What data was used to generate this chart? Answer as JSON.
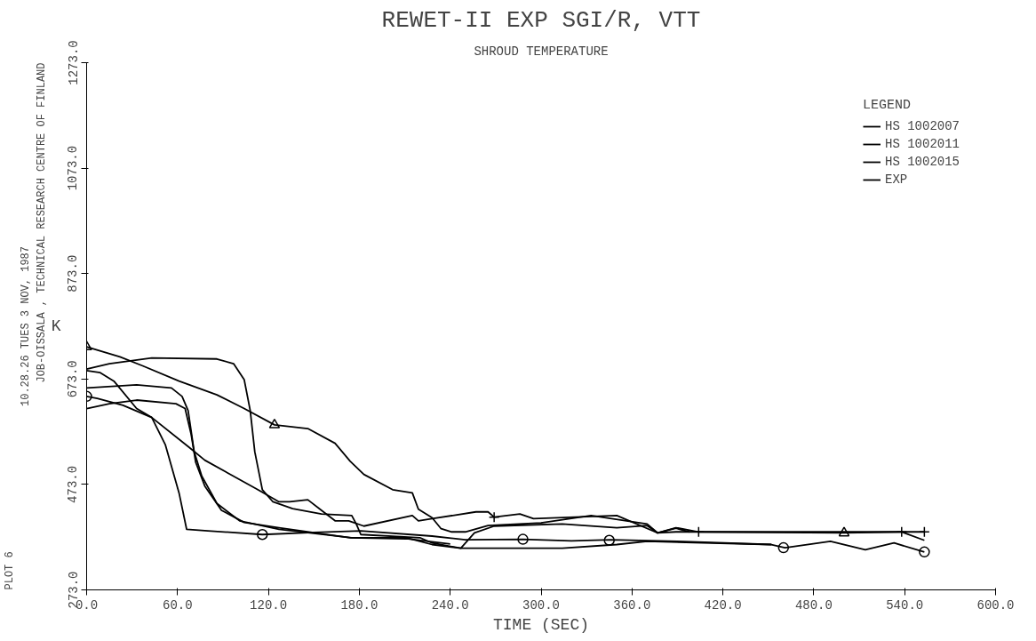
{
  "chart_data": {
    "type": "line",
    "title": "REWET-II EXP SGI/R, VTT",
    "subtitle": "SHROUD TEMPERATURE",
    "xlabel": "TIME (SEC)",
    "ylabel": "K",
    "legend_title": "LEGEND",
    "legend": "top right",
    "grid": false,
    "annotations": [
      "JOB-OISSALA , TECHNICAL RESEARCH CENTRE OF FINLAND",
      "10.28.26 TUES 3 NOV, 1987",
      "PLOT 6"
    ],
    "xlim": [
      0,
      600
    ],
    "ylim": [
      273,
      1273
    ],
    "xticks": [
      {
        "value": 0,
        "label": "0.0"
      },
      {
        "value": 60,
        "label": "60.0"
      },
      {
        "value": 120,
        "label": "120.0"
      },
      {
        "value": 180,
        "label": "180.0"
      },
      {
        "value": 240,
        "label": "240.0"
      },
      {
        "value": 300,
        "label": "300.0"
      },
      {
        "value": 360,
        "label": "360.0"
      },
      {
        "value": 420,
        "label": "420.0"
      },
      {
        "value": 480,
        "label": "480.0"
      },
      {
        "value": 540,
        "label": "540.0"
      },
      {
        "value": 600,
        "label": "600.0"
      }
    ],
    "yticks": [
      {
        "value": 273,
        "label": "273.0"
      },
      {
        "value": 473,
        "label": "473.0"
      },
      {
        "value": 673,
        "label": "673.0"
      },
      {
        "value": 873,
        "label": "873.0"
      },
      {
        "value": 1073,
        "label": "1073.0"
      },
      {
        "value": 1273,
        "label": "1273.0"
      }
    ],
    "series": [
      {
        "name": "HS 1002007",
        "color": "#000000",
        "x": [
          0,
          7,
          24,
          43,
          52,
          61,
          66,
          80,
          116,
          150,
          181,
          228,
          250,
          288,
          320,
          346,
          390,
          452,
          461,
          491,
          514,
          533,
          553
        ],
        "values": [
          640,
          636,
          623,
          600,
          548,
          457,
          388,
          385,
          378,
          382,
          385,
          375,
          368,
          369,
          366,
          368,
          365,
          359,
          353,
          365,
          349,
          362,
          345
        ]
      },
      {
        "name": "HS 1002011",
        "color": "#000000",
        "x": [
          0,
          22,
          37,
          61,
          86,
          104,
          124,
          146,
          164,
          174,
          183,
          202,
          215,
          219,
          228,
          234,
          241,
          250,
          265,
          300,
          333,
          370,
          377,
          389,
          404,
          500,
          538,
          553
        ],
        "values": [
          734,
          715,
          698,
          669,
          643,
          617,
          586,
          579,
          551,
          517,
          492,
          463,
          457,
          426,
          410,
          389,
          383,
          383,
          395,
          400,
          414,
          398,
          381,
          383,
          383,
          381,
          383,
          367
        ]
      },
      {
        "name": "HS 1002015",
        "color": "#000000",
        "x": [
          0,
          9,
          18,
          33,
          43,
          67,
          78,
          113,
          127,
          134,
          146,
          155,
          164,
          173,
          183,
          215,
          219,
          228,
          257,
          265,
          269,
          286,
          295,
          350,
          377,
          389,
          404,
          500,
          538,
          553
        ],
        "values": [
          689,
          685,
          669,
          617,
          600,
          545,
          519,
          463,
          440,
          440,
          444,
          424,
          404,
          404,
          394,
          414,
          404,
          408,
          421,
          421,
          411,
          417,
          408,
          414,
          381,
          391,
          383,
          383,
          383,
          383
        ]
      },
      {
        "name": "EXP",
        "color": "#000000",
        "x": [
          0,
          15,
          43,
          86,
          97,
          104,
          108,
          111,
          116,
          123,
          136,
          155,
          175,
          178,
          181,
          220,
          228,
          247,
          256,
          269,
          314,
          350,
          370,
          377,
          389,
          398
        ],
        "values": [
          692,
          702,
          713,
          711,
          702,
          672,
          613,
          535,
          463,
          440,
          427,
          417,
          414,
          398,
          378,
          372,
          362,
          352,
          381,
          394,
          398,
          391,
          395,
          381,
          390,
          383
        ]
      },
      {
        "color": "#000000",
        "x": [
          0,
          33,
          56,
          63,
          67,
          71,
          76,
          86,
          101,
          127,
          175,
          211,
          228,
          247,
          314,
          350,
          370,
          452
        ],
        "values": [
          656,
          662,
          656,
          640,
          613,
          535,
          489,
          437,
          404,
          388,
          372,
          372,
          359,
          352,
          352,
          359,
          365,
          359
        ]
      },
      {
        "color": "#000000",
        "x": [
          0,
          15,
          33,
          59,
          65,
          69,
          72,
          78,
          89,
          104,
          127,
          174,
          211,
          240
        ],
        "values": [
          617,
          626,
          633,
          626,
          617,
          568,
          515,
          470,
          424,
          401,
          391,
          372,
          370,
          360
        ]
      },
      {
        "type": "scatter",
        "marker": "circle",
        "color": "#000000",
        "x": [
          0,
          116,
          288,
          345,
          460,
          553
        ],
        "values": [
          640,
          378,
          369,
          367,
          353,
          345
        ]
      },
      {
        "type": "scatter",
        "marker": "triangle",
        "color": "#000000",
        "x": [
          0,
          124,
          500
        ],
        "values": [
          734,
          586,
          381
        ]
      },
      {
        "type": "scatter",
        "marker": "cross",
        "color": "#000000",
        "x": [
          269,
          404,
          538,
          553
        ],
        "values": [
          411,
          383,
          383,
          383
        ]
      }
    ]
  }
}
